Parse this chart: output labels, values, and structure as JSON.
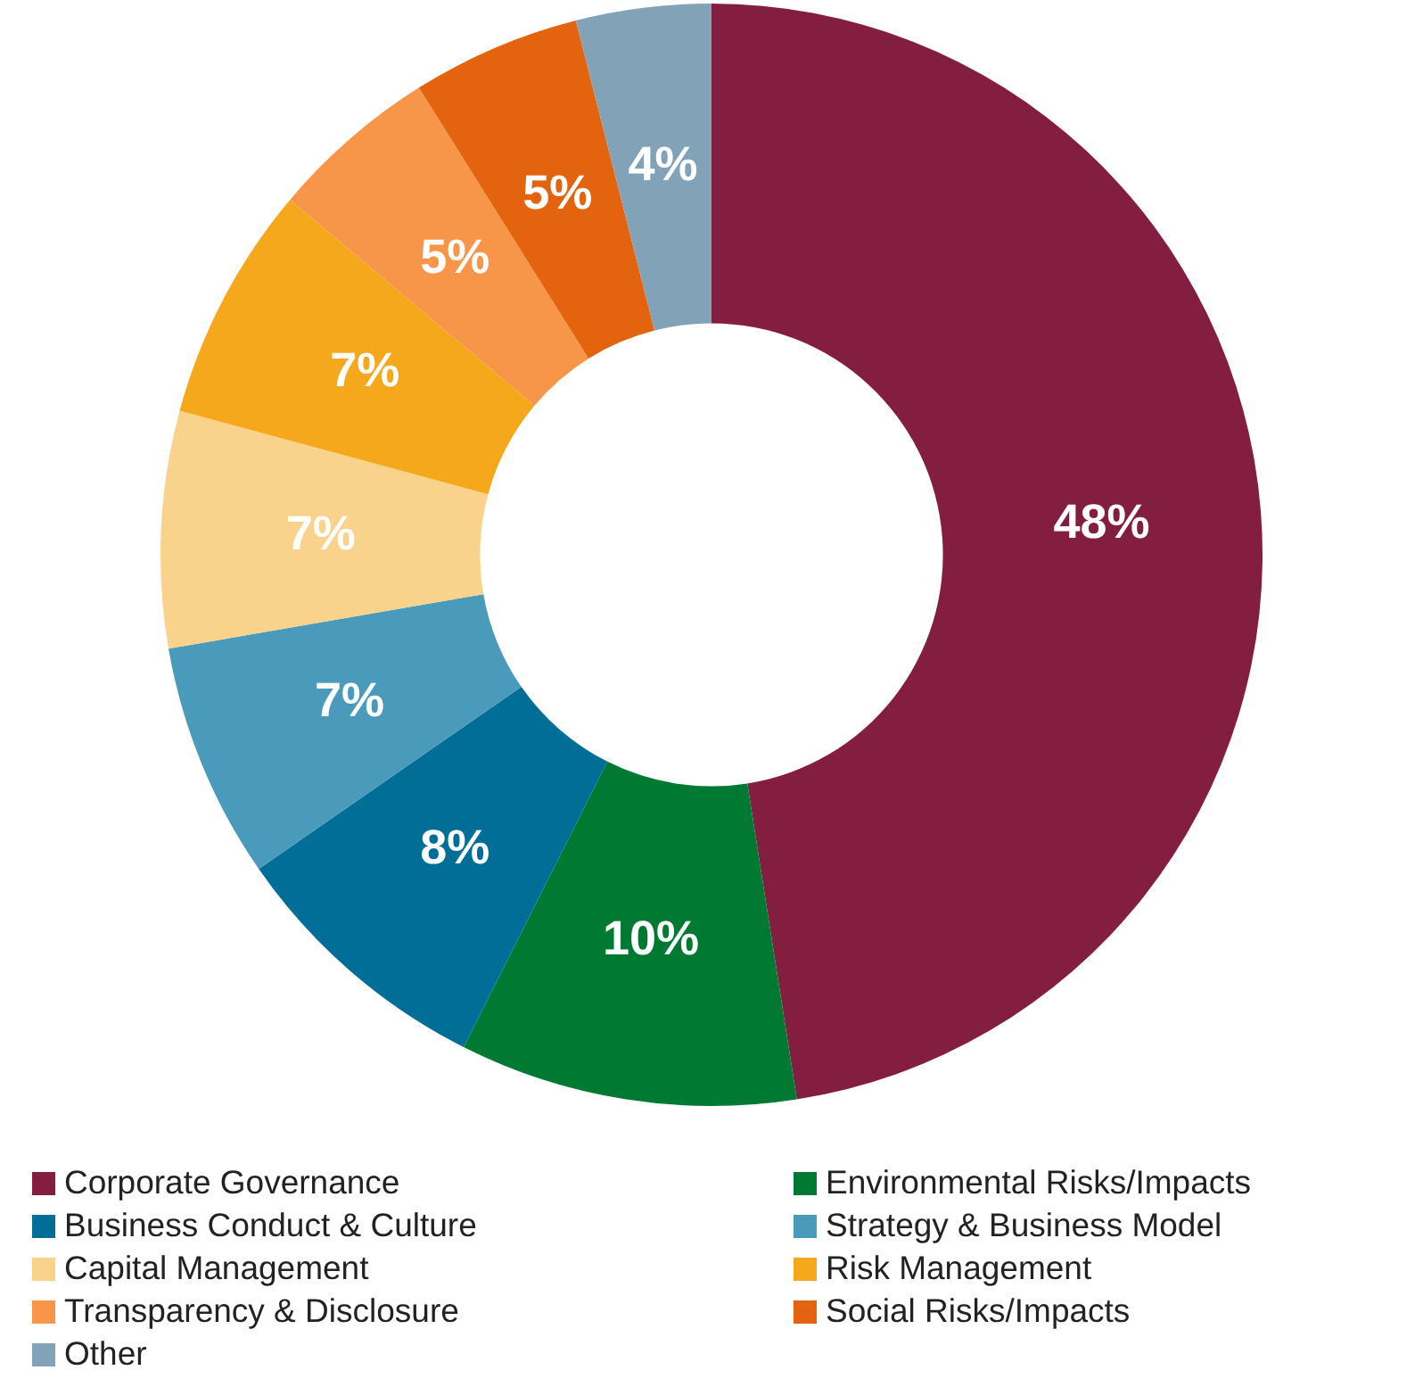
{
  "chart_data": {
    "type": "donut",
    "categories": [
      "Corporate Governance",
      "Environmental Risks/Impacts",
      "Business Conduct & Culture",
      "Strategy & Business Model",
      "Capital Management",
      "Risk Management",
      "Transparency & Disclosure",
      "Social Risks/Impacts",
      "Other"
    ],
    "values": [
      48,
      10,
      8,
      7,
      7,
      7,
      5,
      5,
      4
    ],
    "colors": [
      "#841e40",
      "#007a33",
      "#006e96",
      "#4a9bbb",
      "#f9d38c",
      "#f5a81c",
      "#f79548",
      "#e3630f",
      "#82a2b8"
    ],
    "value_labels": [
      "48%",
      "10%",
      "8%",
      "7%",
      "7%",
      "7%",
      "5%",
      "5%",
      "4%"
    ],
    "legend": "bottom"
  }
}
